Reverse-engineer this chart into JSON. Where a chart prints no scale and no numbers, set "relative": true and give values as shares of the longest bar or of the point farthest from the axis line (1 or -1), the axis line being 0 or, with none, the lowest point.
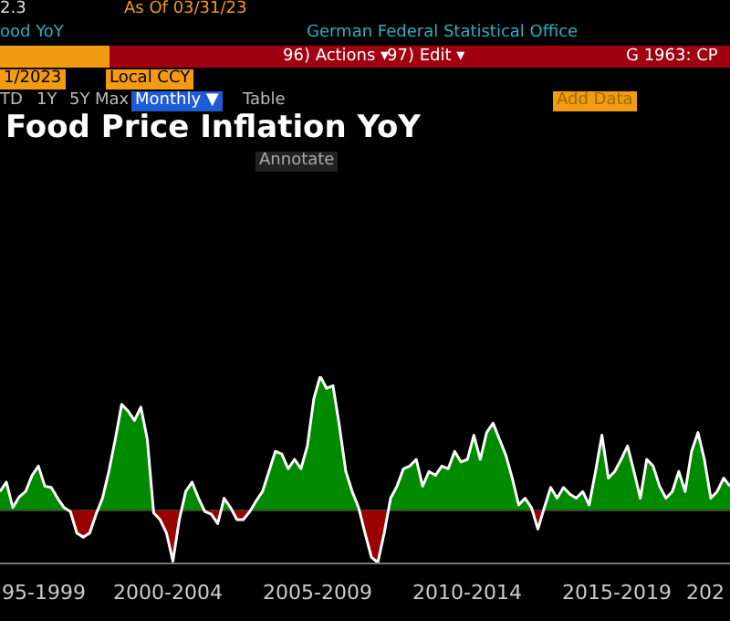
{
  "chart_data": {
    "type": "area",
    "title": "Food Price Inflation YoY",
    "relative": true,
    "color": "#ffffff",
    "annotations": [
      "2.3",
      "As Of 03/31/23",
      "ood YoY",
      "German Federal Statistical Office",
      "96) Actions ▾",
      "97) Edit ▾",
      "G 1963: CP",
      "1/2023",
      "Local CCY",
      "TD",
      "1Y",
      "5Y",
      "Max",
      "Monthly ▼",
      "Table",
      "Add Data",
      "Annotate",
      "95-1999",
      "2000-2004",
      "2005-2009",
      "2010-2014",
      "2015-2019",
      "202"
    ],
    "categories": [
      null,
      null,
      null,
      null,
      null,
      null,
      null,
      null,
      null,
      null,
      null,
      null,
      null,
      null,
      null,
      null,
      null,
      null,
      null,
      null,
      null,
      null,
      null,
      null,
      null,
      null,
      null,
      null,
      null,
      null,
      null,
      null,
      null,
      null,
      null,
      null,
      null,
      null,
      null,
      null,
      null,
      null,
      null,
      null,
      null,
      null,
      null,
      null,
      null,
      null,
      null,
      null,
      null,
      null,
      null,
      null,
      null,
      null,
      null,
      null,
      null,
      null,
      null,
      null,
      null,
      null,
      null,
      null,
      null,
      null,
      null,
      null,
      null,
      null,
      null,
      null,
      null,
      null,
      null,
      null,
      null,
      null,
      null,
      null,
      null,
      null,
      null,
      null,
      null,
      null,
      null,
      null,
      null,
      null,
      null,
      null,
      null,
      null,
      null,
      null,
      null,
      null,
      null,
      null,
      null,
      null,
      null,
      null,
      null,
      null,
      null,
      null,
      null,
      null,
      null
    ],
    "values": [
      0.14,
      0.21,
      0.02,
      0.1,
      0.14,
      0.26,
      0.33,
      0.18,
      0.17,
      0.09,
      0.02,
      -0.01,
      -0.17,
      -0.2,
      -0.17,
      -0.03,
      0.09,
      0.29,
      0.53,
      0.79,
      0.74,
      0.67,
      0.77,
      0.53,
      -0.02,
      -0.07,
      -0.17,
      -0.38,
      -0.07,
      0.14,
      0.21,
      0.09,
      -0.01,
      -0.03,
      -0.1,
      0.09,
      0.02,
      -0.07,
      -0.07,
      -0.01,
      0.07,
      0.14,
      0.29,
      0.44,
      0.42,
      0.31,
      0.38,
      0.31,
      0.48,
      0.83,
      1,
      0.91,
      0.93,
      0.63,
      0.29,
      0.14,
      0.02,
      -0.17,
      -0.35,
      -0.39,
      -0.17,
      0.09,
      0.18,
      0.31,
      0.33,
      0.38,
      0.18,
      0.29,
      0.26,
      0.33,
      0.31,
      0.44,
      0.36,
      0.38,
      0.56,
      0.38,
      0.58,
      0.65,
      0.53,
      0.41,
      0.24,
      0.04,
      0.09,
      0.02,
      -0.14,
      0.02,
      0.17,
      0.09,
      0.17,
      0.12,
      0.09,
      0.14,
      0.04,
      0.29,
      0.56,
      0.24,
      0.29,
      0.38,
      0.48,
      0.29,
      0.09,
      0.38,
      0.33,
      0.18,
      0.09,
      0.14,
      0.29,
      0.14,
      0.44,
      0.58,
      0.38,
      0.09,
      0.14,
      0.24,
      0.18
    ]
  }
}
